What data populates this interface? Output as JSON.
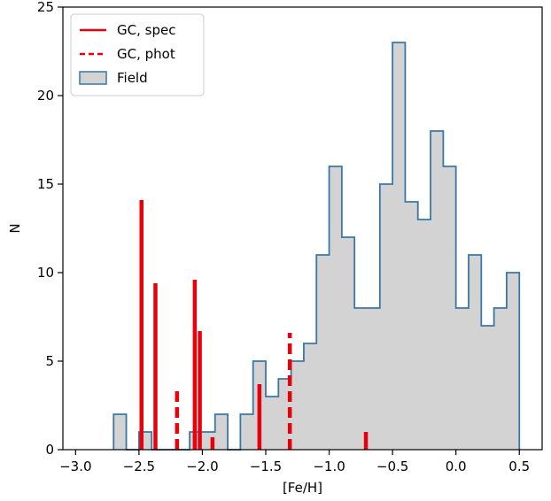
{
  "chart_data": {
    "type": "histogram",
    "xlabel": "[Fe/H]",
    "ylabel": "N",
    "xlim": [
      -3.1,
      0.68
    ],
    "ylim": [
      0,
      25
    ],
    "xticks": [
      -3.0,
      -2.5,
      -2.0,
      -1.5,
      -1.0,
      -0.5,
      0.0,
      0.5
    ],
    "xtick_labels": [
      "−3.0",
      "−2.5",
      "−2.0",
      "−1.5",
      "−1.0",
      "−0.5",
      "0.0",
      "0.5"
    ],
    "yticks": [
      0,
      5,
      10,
      15,
      20,
      25
    ],
    "ytick_labels": [
      "0",
      "5",
      "10",
      "15",
      "20",
      "25"
    ],
    "legend": {
      "placement": "upper-left",
      "entries": [
        {
          "label": "GC, spec",
          "style": "solid-line",
          "color": "#e8000b"
        },
        {
          "label": "GC, phot",
          "style": "dashed-line",
          "color": "#e8000b"
        },
        {
          "label": "Field",
          "style": "filled-step",
          "color": "#1f5f8b",
          "fill": "#d3d3d3"
        }
      ]
    },
    "field_histogram": {
      "bin_edges": [
        -2.7,
        -2.6,
        -2.5,
        -2.4,
        -2.3,
        -2.2,
        -2.1,
        -2.0,
        -1.9,
        -1.8,
        -1.7,
        -1.6,
        -1.5,
        -1.4,
        -1.3,
        -1.2,
        -1.1,
        -1.0,
        -0.9,
        -0.8,
        -0.7,
        -0.6,
        -0.5,
        -0.4,
        -0.3,
        -0.2,
        -0.1,
        0.0,
        0.1,
        0.2,
        0.3,
        0.4,
        0.5
      ],
      "counts": [
        2,
        0,
        1,
        0,
        0,
        0,
        1,
        1,
        2,
        0,
        2,
        5,
        3,
        4,
        5,
        6,
        11,
        16,
        12,
        8,
        8,
        15,
        23,
        14,
        13,
        18,
        16,
        8,
        11,
        7,
        8,
        10
      ],
      "edge_color": "#3a77a6",
      "fill_color": "#d3d3d3"
    },
    "gc_spec": {
      "color": "#e8000b",
      "lines": [
        {
          "x": -2.48,
          "y": 14.1
        },
        {
          "x": -2.37,
          "y": 9.4
        },
        {
          "x": -2.06,
          "y": 9.6
        },
        {
          "x": -2.02,
          "y": 6.7
        },
        {
          "x": -1.92,
          "y": 0.7
        },
        {
          "x": -1.55,
          "y": 3.7
        },
        {
          "x": -0.71,
          "y": 1.0
        }
      ]
    },
    "gc_phot": {
      "color": "#e8000b",
      "lines": [
        {
          "x": -2.2,
          "y": 3.3
        },
        {
          "x": -1.31,
          "y": 6.6
        }
      ]
    }
  }
}
